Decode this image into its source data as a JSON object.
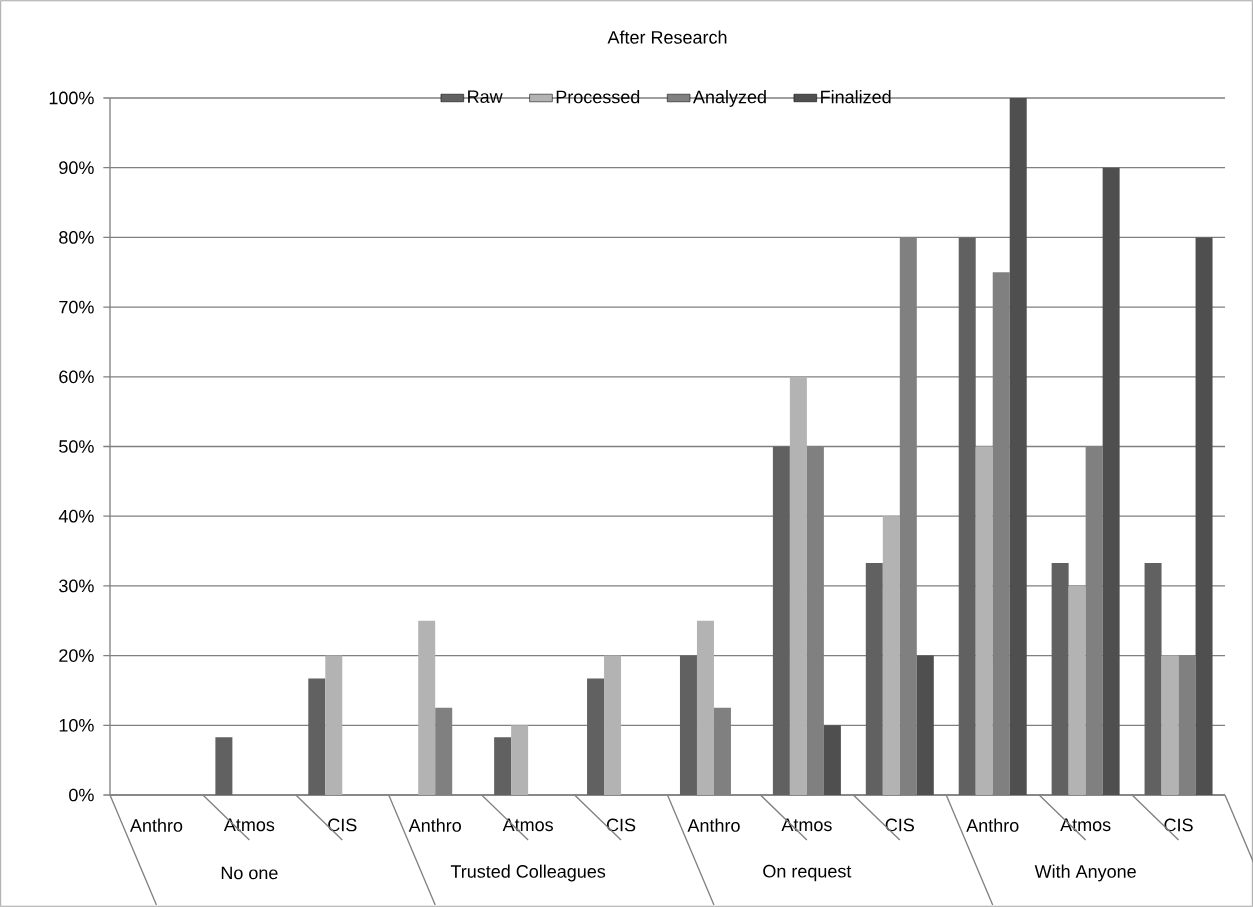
{
  "chart_data": {
    "type": "bar",
    "title": "After Research",
    "categories": [
      "Anthro",
      "Atmos",
      "CIS",
      "Anthro",
      "Atmos",
      "CIS",
      "Anthro",
      "Atmos",
      "CIS",
      "Anthro",
      "Atmos",
      "CIS"
    ],
    "annotations": [
      "No one",
      "Trusted Colleagues",
      "On request",
      "With Anyone"
    ],
    "series": [
      {
        "name": "Raw",
        "color": "#616161",
        "values": [
          0,
          8.3,
          16.7,
          0,
          8.3,
          16.7,
          20,
          50,
          33.3,
          80,
          33.3,
          33.3
        ]
      },
      {
        "name": "Processed",
        "color": "#b3b3b3",
        "values": [
          0,
          0,
          20,
          25,
          10,
          20,
          25,
          60,
          40,
          50,
          30,
          20
        ]
      },
      {
        "name": "Analyzed",
        "color": "#808080",
        "values": [
          0,
          0,
          0,
          12.5,
          0,
          0,
          12.5,
          50,
          80,
          75,
          50,
          20
        ]
      },
      {
        "name": "Finalized",
        "color": "#4f4f4f",
        "values": [
          0,
          0,
          0,
          0,
          0,
          0,
          0,
          10,
          20,
          100,
          90,
          80
        ]
      }
    ],
    "ylim": [
      0,
      100
    ],
    "yticks": [
      {
        "value": 0,
        "label": "0%"
      },
      {
        "value": 10,
        "label": "10%"
      },
      {
        "value": 20,
        "label": "20%"
      },
      {
        "value": 30,
        "label": "30%"
      },
      {
        "value": 40,
        "label": "40%"
      },
      {
        "value": 50,
        "label": "50%"
      },
      {
        "value": 60,
        "label": "60%"
      },
      {
        "value": 70,
        "label": "70%"
      },
      {
        "value": 80,
        "label": "80%"
      },
      {
        "value": 90,
        "label": "90%"
      },
      {
        "value": 100,
        "label": "100%"
      }
    ],
    "grid": "y",
    "legend": "top"
  }
}
